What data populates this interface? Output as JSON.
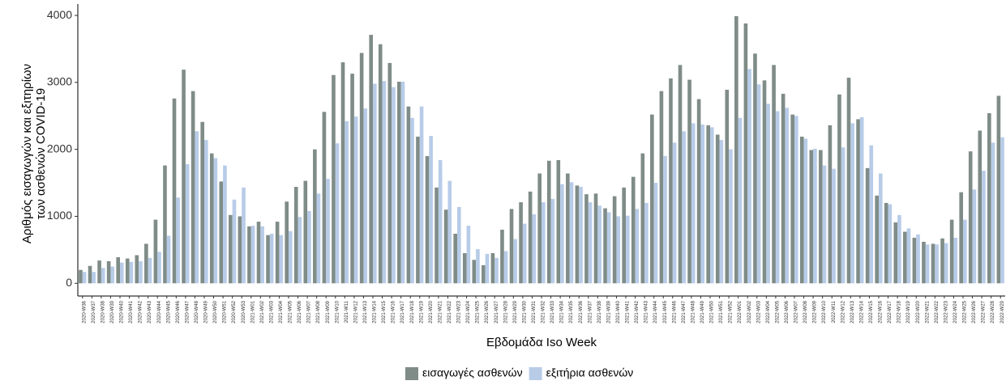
{
  "chart_data": {
    "type": "bar",
    "x_label": "Εβδομάδα Iso Week",
    "y_label": [
      "Αριθμός εισαγωγών και εξιτηρίων",
      "των ασθενών COVID-19"
    ],
    "categories": [
      "2020-W36",
      "2020-W37",
      "2020-W38",
      "2020-W39",
      "2020-W40",
      "2020-W41",
      "2020-W42",
      "2020-W43",
      "2020-W44",
      "2020-W45",
      "2020-W46",
      "2020-W47",
      "2020-W48",
      "2020-W49",
      "2020-W50",
      "2020-W51",
      "2020-W52",
      "2020-W53",
      "2021-W01",
      "2021-W02",
      "2021-W03",
      "2021-W04",
      "2021-W05",
      "2021-W06",
      "2021-W07",
      "2021-W08",
      "2021-W09",
      "2021-W10",
      "2021-W11",
      "2021-W12",
      "2021-W13",
      "2021-W14",
      "2021-W15",
      "2021-W16",
      "2021-W17",
      "2021-W18",
      "2021-W19",
      "2021-W20",
      "2021-W21",
      "2021-W22",
      "2021-W23",
      "2021-W24",
      "2021-W25",
      "2021-W26",
      "2021-W27",
      "2021-W28",
      "2021-W29",
      "2021-W30",
      "2021-W31",
      "2021-W32",
      "2021-W33",
      "2021-W34",
      "2021-W35",
      "2021-W36",
      "2021-W37",
      "2021-W38",
      "2021-W39",
      "2021-W40",
      "2021-W41",
      "2021-W42",
      "2021-W43",
      "2021-W44",
      "2021-W45",
      "2021-W46",
      "2021-W47",
      "2021-W48",
      "2021-W49",
      "2021-W50",
      "2021-W51",
      "2021-W52",
      "2022-W01",
      "2022-W02",
      "2022-W03",
      "2022-W04",
      "2022-W05",
      "2022-W06",
      "2022-W07",
      "2022-W08",
      "2022-W09",
      "2022-W10",
      "2022-W11",
      "2022-W12",
      "2022-W13",
      "2022-W14",
      "2022-W15",
      "2022-W16",
      "2022-W17",
      "2022-W18",
      "2022-W19",
      "2022-W20",
      "2022-W21",
      "2022-W22",
      "2022-W23",
      "2022-W24",
      "2022-W25",
      "2022-W26",
      "2022-W27",
      "2022-W28",
      "2022-W29"
    ],
    "series": [
      {
        "name": "εισαγωγές ασθενών",
        "color": "#7f8c87",
        "values": [
          200,
          260,
          340,
          330,
          390,
          370,
          420,
          590,
          950,
          1760,
          2760,
          3190,
          2870,
          2410,
          1940,
          1520,
          1020,
          1000,
          850,
          920,
          720,
          920,
          1220,
          1440,
          1530,
          2000,
          2560,
          3110,
          3300,
          3130,
          3440,
          3710,
          3570,
          3290,
          3010,
          2640,
          2190,
          1900,
          1430,
          1100,
          740,
          450,
          350,
          270,
          450,
          800,
          1110,
          1210,
          1370,
          1640,
          1830,
          1840,
          1640,
          1460,
          1330,
          1340,
          1120,
          1300,
          1430,
          1590,
          1940,
          2520,
          2870,
          3060,
          3260,
          3040,
          2750,
          2360,
          2220,
          2890,
          3990,
          3880,
          3430,
          3030,
          3260,
          2830,
          2520,
          2190,
          1990,
          1990,
          2360,
          2820,
          3070,
          2450,
          1720,
          1310,
          1200,
          910,
          770,
          680,
          620,
          590,
          670,
          950,
          1360,
          1970,
          2280,
          2540,
          2800
        ]
      },
      {
        "name": "εξιτήρια ασθενών",
        "color": "#b8cce8",
        "values": [
          170,
          170,
          230,
          250,
          310,
          320,
          330,
          380,
          470,
          710,
          1280,
          1780,
          2270,
          2140,
          1870,
          1760,
          1250,
          1430,
          860,
          850,
          740,
          720,
          780,
          990,
          1080,
          1340,
          1560,
          2090,
          2420,
          2490,
          2610,
          2980,
          3020,
          2930,
          3010,
          2470,
          2640,
          2200,
          1840,
          1530,
          1140,
          860,
          510,
          440,
          380,
          480,
          660,
          890,
          1030,
          1210,
          1260,
          1480,
          1510,
          1440,
          1210,
          1160,
          1060,
          1000,
          1010,
          1110,
          1200,
          1500,
          1900,
          2100,
          2270,
          2390,
          2370,
          2330,
          2140,
          2000,
          2470,
          3200,
          2970,
          2680,
          2570,
          2620,
          2500,
          2160,
          2010,
          1760,
          1710,
          2030,
          2390,
          2480,
          2060,
          1640,
          1180,
          1020,
          820,
          730,
          580,
          580,
          600,
          680,
          950,
          1400,
          1680,
          2100,
          2180
        ]
      }
    ],
    "ylim": [
      -190,
      4170
    ],
    "yticks": [
      0,
      1000,
      2000,
      3000,
      4000
    ],
    "grid": false,
    "legend": "bottom"
  }
}
